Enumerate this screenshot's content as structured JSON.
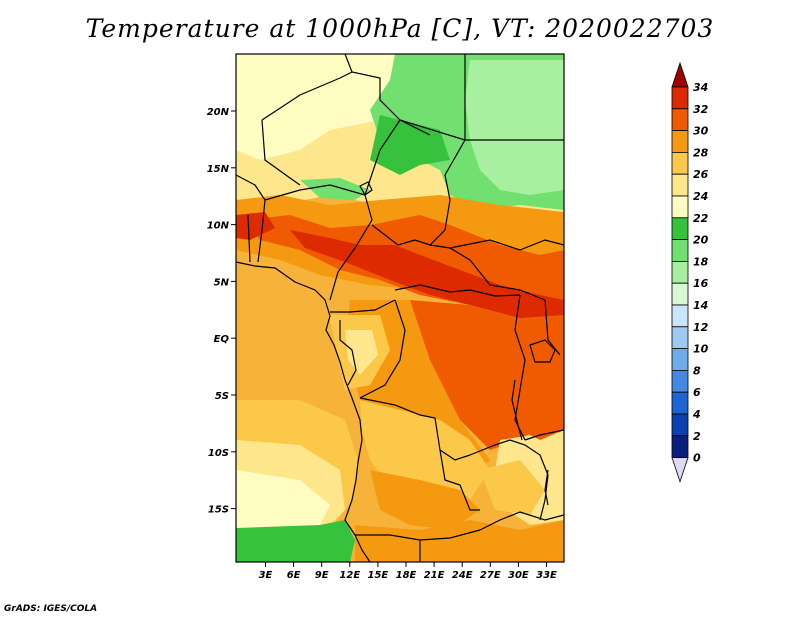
{
  "title": "Temperature at 1000hPa [C], VT: 2020022703",
  "credit": "GrADS: IGES/COLA",
  "map": {
    "lon_labels": [
      "3E",
      "6E",
      "9E",
      "12E",
      "15E",
      "18E",
      "21E",
      "24E",
      "27E",
      "30E",
      "33E"
    ],
    "lat_labels": [
      "20N",
      "15N",
      "10N",
      "5N",
      "EQ",
      "5S",
      "10S",
      "15S"
    ],
    "field": "temperature-1000hPa"
  },
  "colorbar": {
    "labels": [
      "34",
      "32",
      "30",
      "28",
      "26",
      "24",
      "22",
      "20",
      "18",
      "16",
      "14",
      "12",
      "10",
      "8",
      "6",
      "4",
      "2",
      "0"
    ],
    "colors": [
      "#a00000",
      "#dd2a00",
      "#f05a00",
      "#f59a10",
      "#fbc84a",
      "#fde68c",
      "#fefcc0",
      "#36c23c",
      "#72e070",
      "#a8f0a0",
      "#d6f8d2",
      "#c8e6fa",
      "#9ccaf4",
      "#6eacec",
      "#4488e2",
      "#1e64d2",
      "#0a40b0",
      "#082080",
      "#e0d8f4"
    ],
    "tip_top_color": "#a00000",
    "tip_bottom_color": "#e0d8f4"
  }
}
